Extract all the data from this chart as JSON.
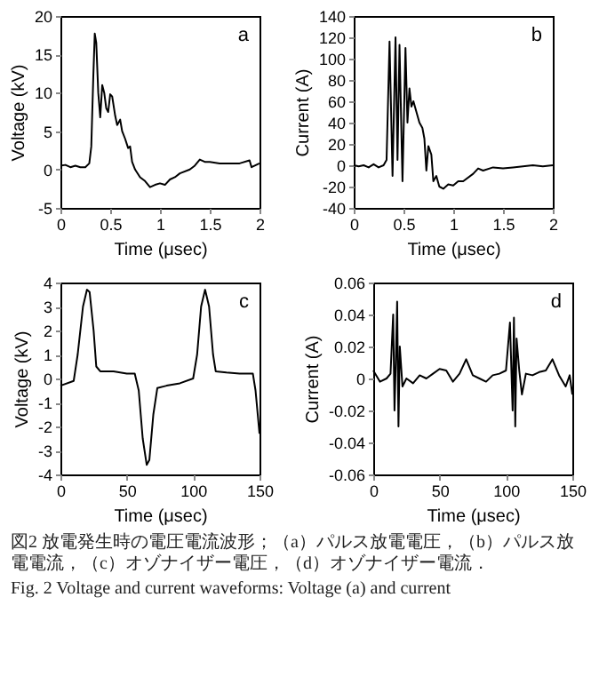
{
  "chart_data": [
    {
      "type": "line",
      "xlabel": "Time (μsec)",
      "ylabel": "Voltage (kV)",
      "annotations": [
        "a"
      ],
      "xlim": [
        0,
        2
      ],
      "xticks": [
        0,
        0.5,
        1,
        1.5,
        2
      ],
      "ylim": [
        -5,
        20
      ],
      "yticks": [
        -5,
        0,
        5,
        10,
        15,
        20
      ],
      "grid": false,
      "x": [
        0,
        0.05,
        0.1,
        0.15,
        0.2,
        0.25,
        0.29,
        0.31,
        0.33,
        0.345,
        0.36,
        0.38,
        0.4,
        0.42,
        0.44,
        0.46,
        0.48,
        0.5,
        0.52,
        0.55,
        0.57,
        0.6,
        0.62,
        0.65,
        0.68,
        0.7,
        0.72,
        0.75,
        0.8,
        0.85,
        0.9,
        0.95,
        1,
        1.05,
        1.1,
        1.15,
        1.2,
        1.3,
        1.35,
        1.4,
        1.45,
        1.5,
        1.6,
        1.7,
        1.8,
        1.9,
        1.92,
        2
      ],
      "series": [
        {
          "color": "#000000",
          "values": [
            0.5,
            0.6,
            0.3,
            0.5,
            0.3,
            0.3,
            0.8,
            3,
            12,
            17.7,
            16.5,
            10,
            6.8,
            11,
            10,
            8,
            7.5,
            9.8,
            9.5,
            7,
            5.8,
            6.5,
            5,
            4,
            2.8,
            3,
            1,
            0,
            -1,
            -1.5,
            -2.3,
            -2,
            -1.8,
            -2,
            -1.3,
            -1,
            -0.5,
            0,
            0.5,
            1.3,
            1,
            1,
            0.8,
            0.8,
            0.8,
            1.2,
            0.3,
            0.8
          ]
        }
      ]
    },
    {
      "type": "line",
      "xlabel": "Time (μsec)",
      "ylabel": "Current (A)",
      "annotations": [
        "b"
      ],
      "xlim": [
        0,
        2
      ],
      "xticks": [
        0,
        0.5,
        1,
        1.5,
        2
      ],
      "ylim": [
        -40,
        140
      ],
      "yticks": [
        -40,
        -20,
        0,
        20,
        40,
        60,
        80,
        100,
        120,
        140
      ],
      "grid": false,
      "x": [
        0,
        0.05,
        0.1,
        0.15,
        0.2,
        0.25,
        0.3,
        0.33,
        0.36,
        0.39,
        0.42,
        0.44,
        0.46,
        0.49,
        0.52,
        0.54,
        0.56,
        0.58,
        0.6,
        0.63,
        0.66,
        0.69,
        0.71,
        0.73,
        0.75,
        0.78,
        0.8,
        0.83,
        0.86,
        0.9,
        0.95,
        1,
        1.05,
        1.1,
        1.2,
        1.25,
        1.3,
        1.4,
        1.5,
        1.6,
        1.7,
        1.8,
        1.9,
        2
      ],
      "series": [
        {
          "color": "#000000",
          "values": [
            0,
            -1,
            0,
            -2,
            1,
            -2,
            0,
            5,
            116,
            -10,
            120,
            5,
            113,
            -15,
            110,
            40,
            72,
            55,
            60,
            50,
            40,
            35,
            25,
            -5,
            18,
            10,
            -15,
            -10,
            -20,
            -22,
            -18,
            -19,
            -15,
            -15,
            -8,
            -3,
            -5,
            -2,
            -3,
            -2,
            -1,
            0,
            -1,
            0
          ]
        }
      ]
    },
    {
      "type": "line",
      "xlabel": "Time (μsec)",
      "ylabel": "Voltage (kV)",
      "annotations": [
        "c"
      ],
      "xlim": [
        0,
        150
      ],
      "xticks": [
        0,
        50,
        100,
        150
      ],
      "ylim": [
        -4,
        4
      ],
      "yticks": [
        -4,
        -3,
        -2,
        -1,
        0,
        1,
        2,
        3,
        4
      ],
      "grid": false,
      "x": [
        0,
        10,
        13,
        17,
        20,
        22,
        25,
        27,
        30,
        40,
        50,
        56,
        59,
        62,
        65,
        67,
        70,
        73,
        80,
        90,
        100,
        103,
        106,
        109,
        112,
        115,
        117,
        125,
        135,
        145,
        147,
        150
      ],
      "series": [
        {
          "color": "#000000",
          "values": [
            -0.3,
            -0.1,
            1,
            3,
            3.7,
            3.6,
            2,
            0.5,
            0.3,
            0.3,
            0.2,
            0.2,
            -0.5,
            -2.5,
            -3.6,
            -3.4,
            -1.5,
            -0.4,
            -0.3,
            -0.2,
            0,
            1,
            3,
            3.7,
            3,
            1,
            0.3,
            0.25,
            0.2,
            0.2,
            -0.5,
            -2.3
          ]
        }
      ]
    },
    {
      "type": "line",
      "xlabel": "Time (μsec)",
      "ylabel": "Current (A)",
      "annotations": [
        "d"
      ],
      "xlim": [
        0,
        150
      ],
      "xticks": [
        0,
        50,
        100,
        150
      ],
      "ylim": [
        -0.06,
        0.06
      ],
      "yticks": [
        -0.06,
        -0.04,
        -0.02,
        0,
        0.02,
        0.04,
        0.06
      ],
      "grid": false,
      "x": [
        0,
        5,
        10,
        13,
        15,
        16,
        17,
        18,
        19,
        20,
        22,
        25,
        30,
        35,
        40,
        45,
        50,
        55,
        60,
        65,
        70,
        75,
        80,
        85,
        90,
        95,
        100,
        103,
        105,
        106,
        107,
        108,
        110,
        112,
        115,
        120,
        125,
        130,
        135,
        140,
        145,
        148,
        150
      ],
      "series": [
        {
          "color": "#000000",
          "values": [
            0.005,
            -0.002,
            0,
            0.003,
            0.04,
            -0.02,
            0.01,
            0.048,
            -0.03,
            0.02,
            -0.005,
            0,
            -0.003,
            0.002,
            0,
            0.003,
            0.006,
            0.005,
            -0.002,
            0.003,
            0.012,
            0.002,
            0,
            -0.002,
            0.002,
            0.003,
            0.005,
            0.035,
            -0.02,
            0.038,
            -0.03,
            0.025,
            0.005,
            -0.01,
            0.003,
            0.002,
            0.004,
            0.005,
            0.012,
            0.002,
            -0.005,
            0.002,
            -0.01
          ]
        }
      ]
    },
    {
      "type": "other",
      "annotations": [
        "図2 放電発生時の電圧電流波形；（a）パルス放電電圧，（b）パルス放電電流，（c）オゾナイザー電圧，（d）オゾナイザー電流．",
        "Fig. 2 Voltage and current waveforms: Voltage (a) and current"
      ]
    }
  ]
}
